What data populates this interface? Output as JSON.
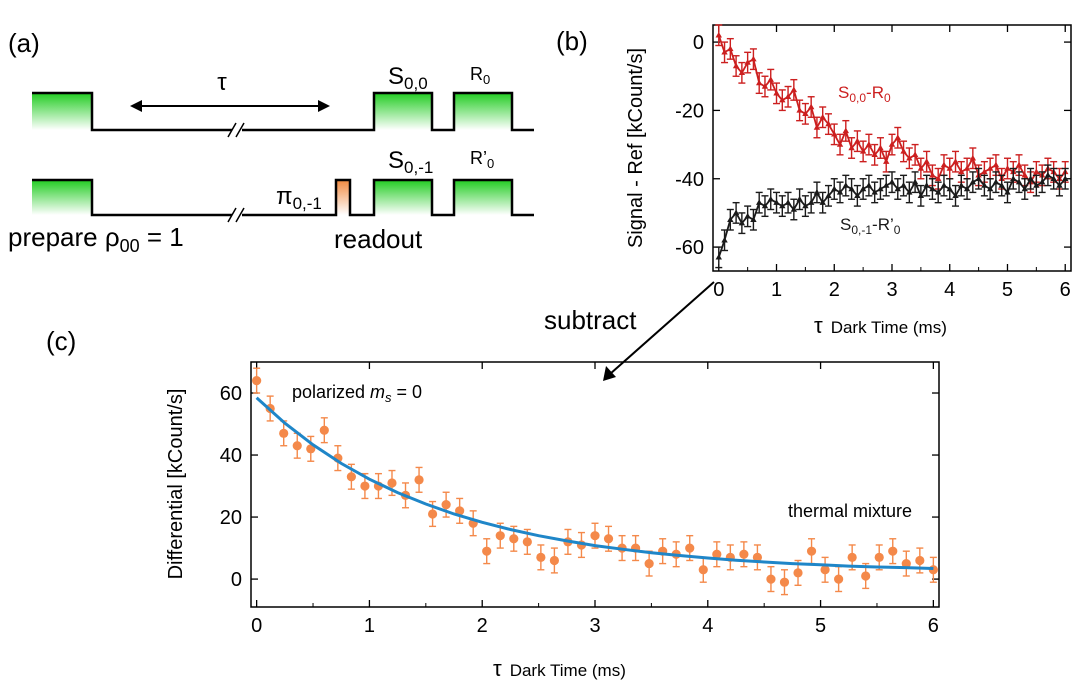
{
  "panel_labels": {
    "a": "(a)",
    "b": "(b)",
    "c": "(c)"
  },
  "sequence": {
    "tau": "τ",
    "s00": {
      "main": "S",
      "sub": "0,0"
    },
    "r0": {
      "main": "R",
      "sub": "0"
    },
    "s01": {
      "main": "S",
      "sub": "0,-1"
    },
    "r0p": {
      "main": "R’",
      "sub": "0"
    },
    "pi": {
      "main": "π",
      "sub": "0,-1"
    },
    "prepare": {
      "main": "prepare ρ",
      "sub": "00",
      "tail": " = 1"
    },
    "readout": "readout",
    "colors": {
      "pulse_fill": "#33cc33",
      "pi_fill": "#f0a060"
    }
  },
  "subtract_label": "subtract",
  "chart_data": [
    {
      "id": "b",
      "type": "line",
      "ylabel": "Signal - Ref [kCount/s]",
      "xlabel": {
        "symbol": "τ",
        "text": "Dark Time (ms)"
      },
      "xlim": [
        -0.1,
        6.1
      ],
      "ylim": [
        -67,
        5
      ],
      "xticks": [
        0,
        1,
        2,
        3,
        4,
        5,
        6
      ],
      "yticks": [
        0,
        -20,
        -40,
        -60
      ],
      "series": [
        {
          "name": "S0,0-R0",
          "name_main": "S",
          "name_sub": "0,0",
          "name_mid": "-R",
          "name_sub2": "0",
          "color": "#cc1f1f",
          "x": [
            0,
            0.1,
            0.2,
            0.3,
            0.4,
            0.5,
            0.6,
            0.7,
            0.8,
            0.9,
            1.0,
            1.1,
            1.2,
            1.3,
            1.4,
            1.5,
            1.6,
            1.7,
            1.8,
            1.9,
            2.0,
            2.1,
            2.2,
            2.3,
            2.4,
            2.5,
            2.6,
            2.7,
            2.8,
            2.9,
            3.0,
            3.1,
            3.2,
            3.3,
            3.4,
            3.5,
            3.6,
            3.7,
            3.8,
            3.9,
            4.0,
            4.1,
            4.2,
            4.3,
            4.4,
            4.5,
            4.6,
            4.7,
            4.8,
            4.9,
            5.0,
            5.1,
            5.2,
            5.3,
            5.4,
            5.5,
            5.6,
            5.7,
            5.8,
            5.9,
            6.0
          ],
          "y": [
            2,
            -3,
            -2,
            -7,
            -9,
            -6,
            -5,
            -12,
            -13,
            -11,
            -15,
            -17,
            -16,
            -14,
            -20,
            -21,
            -19,
            -25,
            -22,
            -24,
            -27,
            -30,
            -26,
            -31,
            -29,
            -32,
            -30,
            -33,
            -31,
            -35,
            -30,
            -28,
            -32,
            -34,
            -33,
            -37,
            -35,
            -39,
            -40,
            -36,
            -37,
            -35,
            -38,
            -37,
            -34,
            -39,
            -38,
            -37,
            -36,
            -40,
            -37,
            -38,
            -36,
            -39,
            -41,
            -38,
            -39,
            -37,
            -38,
            -40,
            -38
          ],
          "err": 3
        },
        {
          "name": "S0,-1-R'0",
          "name_main": "S",
          "name_sub": "0,-1",
          "name_mid": "-R’",
          "name_sub2": "0",
          "color": "#1a1a1a",
          "x": [
            0,
            0.1,
            0.2,
            0.3,
            0.4,
            0.5,
            0.6,
            0.7,
            0.8,
            0.9,
            1.0,
            1.1,
            1.2,
            1.3,
            1.4,
            1.5,
            1.6,
            1.7,
            1.8,
            1.9,
            2.0,
            2.1,
            2.2,
            2.3,
            2.4,
            2.5,
            2.6,
            2.7,
            2.8,
            2.9,
            3.0,
            3.1,
            3.2,
            3.3,
            3.4,
            3.5,
            3.6,
            3.7,
            3.8,
            3.9,
            4.0,
            4.1,
            4.2,
            4.3,
            4.4,
            4.5,
            4.6,
            4.7,
            4.8,
            4.9,
            5.0,
            5.1,
            5.2,
            5.3,
            5.4,
            5.5,
            5.6,
            5.7,
            5.8,
            5.9,
            6.0
          ],
          "y": [
            -63,
            -58,
            -52,
            -50,
            -53,
            -51,
            -52,
            -47,
            -48,
            -46,
            -47,
            -48,
            -47,
            -49,
            -46,
            -48,
            -47,
            -44,
            -47,
            -45,
            -43,
            -44,
            -42,
            -43,
            -45,
            -43,
            -42,
            -44,
            -43,
            -42,
            -41,
            -43,
            -42,
            -44,
            -41,
            -45,
            -42,
            -43,
            -44,
            -42,
            -43,
            -45,
            -42,
            -43,
            -41,
            -40,
            -42,
            -43,
            -41,
            -42,
            -44,
            -40,
            -41,
            -43,
            -40,
            -42,
            -41,
            -39,
            -40,
            -42,
            -40
          ],
          "err": 3
        }
      ]
    },
    {
      "id": "c",
      "type": "scatter",
      "ylabel": "Differential [kCount/s]",
      "xlabel": {
        "symbol": "τ",
        "text": "Dark Time (ms)"
      },
      "xlim": [
        -0.05,
        6.05
      ],
      "ylim": [
        -9,
        70
      ],
      "xticks": [
        0,
        1,
        2,
        3,
        4,
        5,
        6
      ],
      "yticks": [
        0,
        20,
        40,
        60
      ],
      "annotations": {
        "polarized": {
          "text": "polarized ",
          "italic": "m",
          "sub": "s",
          "tail": " = 0"
        },
        "thermal": "thermal mixture"
      },
      "series": [
        {
          "name": "data",
          "color": "#f4894a",
          "x": [
            0,
            0.12,
            0.24,
            0.36,
            0.48,
            0.6,
            0.72,
            0.84,
            0.96,
            1.08,
            1.2,
            1.32,
            1.44,
            1.56,
            1.68,
            1.8,
            1.92,
            2.04,
            2.16,
            2.28,
            2.4,
            2.52,
            2.64,
            2.76,
            2.88,
            3.0,
            3.12,
            3.24,
            3.36,
            3.48,
            3.6,
            3.72,
            3.84,
            3.96,
            4.08,
            4.2,
            4.32,
            4.44,
            4.56,
            4.68,
            4.8,
            4.92,
            5.04,
            5.16,
            5.28,
            5.4,
            5.52,
            5.64,
            5.76,
            5.88,
            6.0
          ],
          "y": [
            64,
            55,
            47,
            43,
            42,
            48,
            39,
            33,
            30,
            30,
            31,
            27,
            32,
            21,
            24,
            22,
            18,
            9,
            14,
            13,
            12,
            7,
            6,
            12,
            11,
            14,
            13,
            10,
            10,
            5,
            9,
            8,
            10,
            3,
            8,
            7,
            8,
            7,
            0,
            -1,
            2,
            9,
            3,
            0,
            7,
            1,
            7,
            9,
            5,
            6,
            3
          ],
          "err": 4
        },
        {
          "name": "fit",
          "type": "line",
          "color": "#1f86c8",
          "x": [
            0,
            0.25,
            0.5,
            0.75,
            1.0,
            1.25,
            1.5,
            1.75,
            2.0,
            2.25,
            2.5,
            2.75,
            3.0,
            3.25,
            3.5,
            3.75,
            4.0,
            4.25,
            4.5,
            4.75,
            5.0,
            5.25,
            5.5,
            5.75,
            6.0
          ],
          "y": [
            58.5,
            50.3,
            43.3,
            37.3,
            32.2,
            27.9,
            24.2,
            21.0,
            18.3,
            16.0,
            14.0,
            12.3,
            10.8,
            9.6,
            8.5,
            7.6,
            6.8,
            6.1,
            5.5,
            5.0,
            4.6,
            4.2,
            3.9,
            3.7,
            3.4
          ]
        }
      ]
    }
  ]
}
